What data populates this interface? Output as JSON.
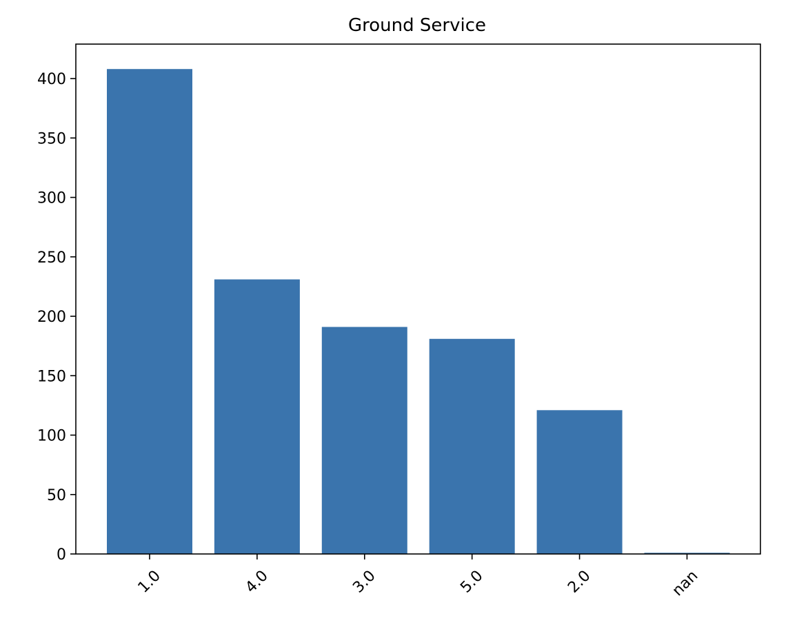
{
  "chart_data": {
    "type": "bar",
    "title": "Ground Service",
    "xlabel": "",
    "ylabel": "",
    "categories": [
      "1.0",
      "4.0",
      "3.0",
      "5.0",
      "2.0",
      "nan"
    ],
    "values": [
      408,
      231,
      191,
      181,
      121,
      1
    ],
    "ylim": [
      0,
      429
    ],
    "yticks": [
      0,
      50,
      100,
      150,
      200,
      250,
      300,
      350,
      400
    ],
    "grid": false,
    "legend": "none",
    "colors": {
      "bar": "#3a74ad",
      "axes": "#000000",
      "background": "#ffffff"
    }
  }
}
